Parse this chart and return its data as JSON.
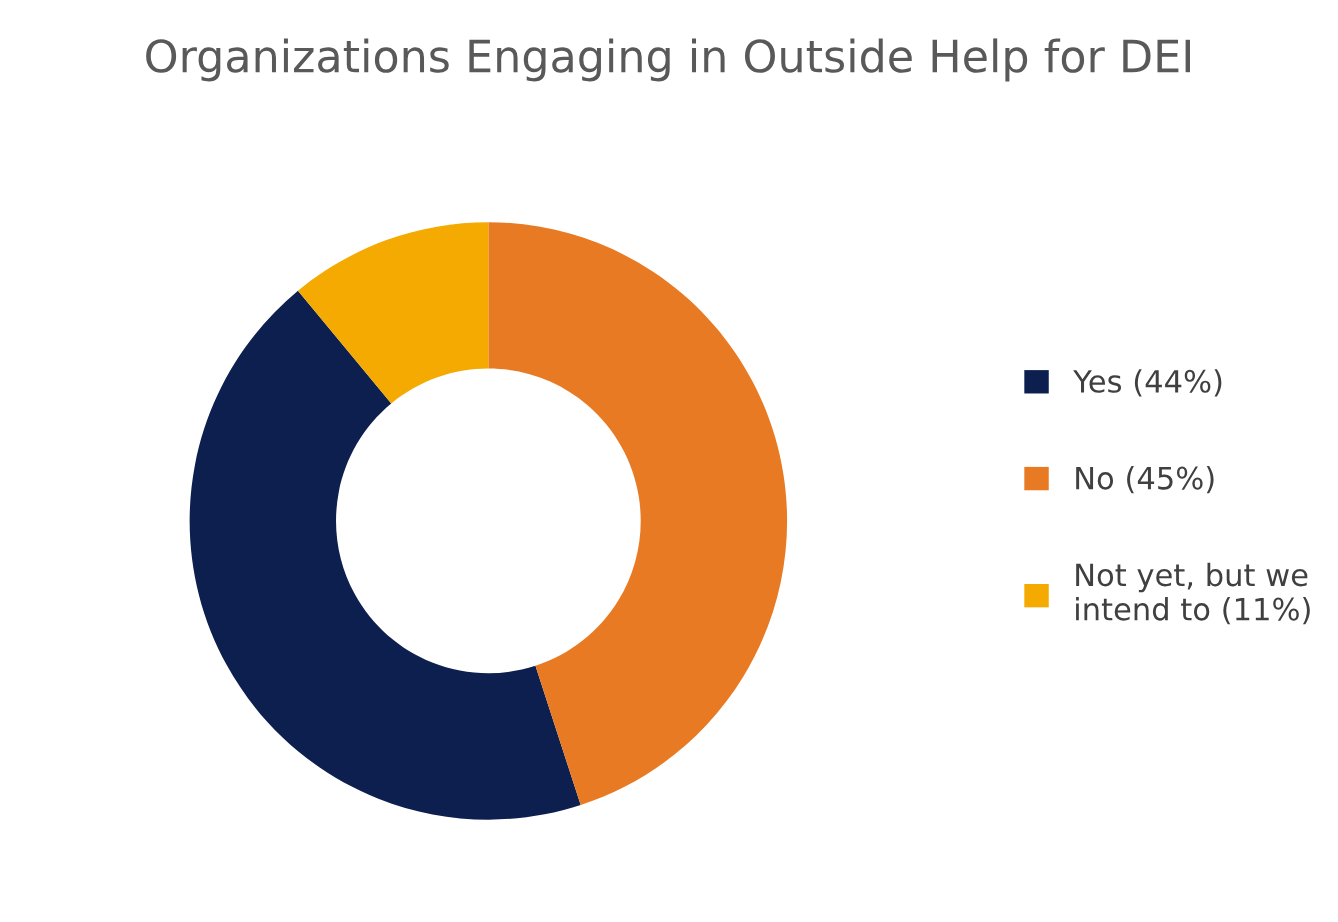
{
  "chart_data": {
    "type": "donut",
    "title": "Organizations Engaging in Outside Help for DEI",
    "categories": [
      "Yes (44%)",
      "No (45%)",
      "Not yet, but we\nintend to (11%)"
    ],
    "values": [
      44,
      45,
      11
    ],
    "colors": [
      "#0d1f4f",
      "#e87a24",
      "#f4aa00"
    ],
    "legend": "right"
  }
}
